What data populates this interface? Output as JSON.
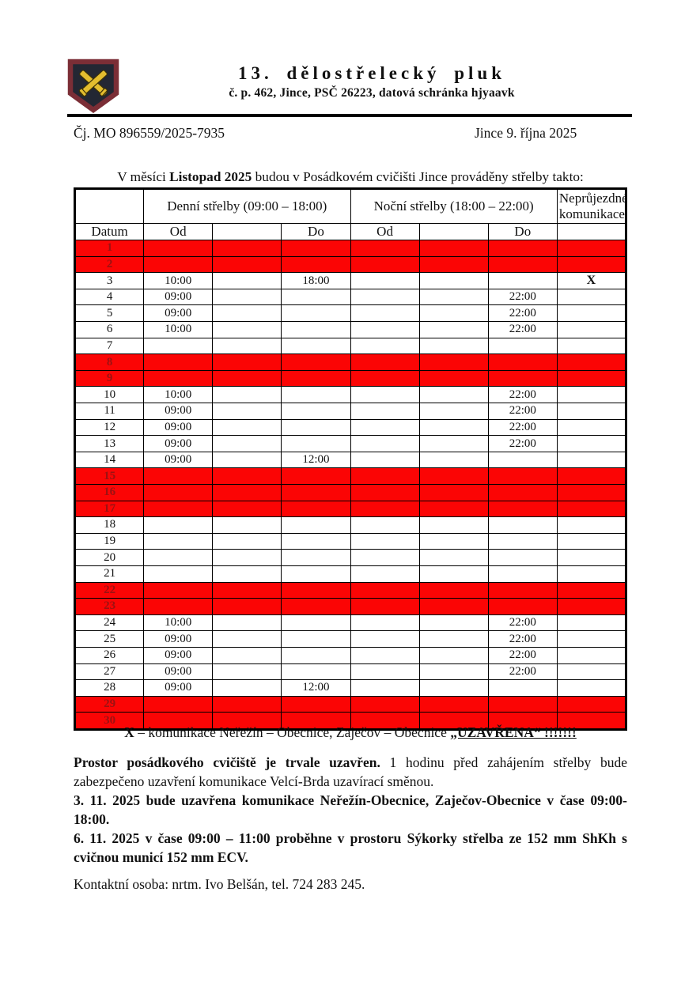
{
  "header": {
    "title": "13. dělostřelecký pluk",
    "address": "č. p. 462, Jince, PSČ 26223, datová  schránka hjyaavk"
  },
  "meta": {
    "ref": "Čj. MO 896559/2025-7935",
    "place_date": "Jince 9. října 2025"
  },
  "intro": {
    "prefix": "V měsíci",
    "month": "Listopad 2025",
    "suffix": "budou v Posádkovém cvičišti Jince prováděny střelby takto:"
  },
  "table": {
    "day_header": "Denní střelby (09:00 – 18:00)",
    "night_header": "Noční střelby (18:00 – 22:00)",
    "impassable_header": "Neprůjezdné komunikace",
    "datum_label": "Datum",
    "od_label": "Od",
    "do_label": "Do",
    "rows": [
      {
        "d": "1",
        "red": true,
        "c": [
          "",
          "",
          "",
          "",
          "",
          "",
          ""
        ]
      },
      {
        "d": "2",
        "red": true,
        "c": [
          "",
          "",
          "",
          "",
          "",
          "",
          ""
        ]
      },
      {
        "d": "3",
        "red": false,
        "c": [
          "10:00",
          "",
          "18:00",
          "",
          "",
          "",
          "X"
        ]
      },
      {
        "d": "4",
        "red": false,
        "c": [
          "09:00",
          "",
          "",
          "",
          "",
          "22:00",
          ""
        ]
      },
      {
        "d": "5",
        "red": false,
        "c": [
          "09:00",
          "",
          "",
          "",
          "",
          "22:00",
          ""
        ]
      },
      {
        "d": "6",
        "red": false,
        "c": [
          "10:00",
          "",
          "",
          "",
          "",
          "22:00",
          ""
        ]
      },
      {
        "d": "7",
        "red": false,
        "c": [
          "",
          "",
          "",
          "",
          "",
          "",
          ""
        ]
      },
      {
        "d": "8",
        "red": true,
        "c": [
          "",
          "",
          "",
          "",
          "",
          "",
          ""
        ]
      },
      {
        "d": "9",
        "red": true,
        "c": [
          "",
          "",
          "",
          "",
          "",
          "",
          ""
        ]
      },
      {
        "d": "10",
        "red": false,
        "c": [
          "10:00",
          "",
          "",
          "",
          "",
          "22:00",
          ""
        ]
      },
      {
        "d": "11",
        "red": false,
        "c": [
          "09:00",
          "",
          "",
          "",
          "",
          "22:00",
          ""
        ]
      },
      {
        "d": "12",
        "red": false,
        "c": [
          "09:00",
          "",
          "",
          "",
          "",
          "22:00",
          ""
        ]
      },
      {
        "d": "13",
        "red": false,
        "c": [
          "09:00",
          "",
          "",
          "",
          "",
          "22:00",
          ""
        ]
      },
      {
        "d": "14",
        "red": false,
        "c": [
          "09:00",
          "",
          "12:00",
          "",
          "",
          "",
          ""
        ]
      },
      {
        "d": "15",
        "red": true,
        "c": [
          "",
          "",
          "",
          "",
          "",
          "",
          ""
        ]
      },
      {
        "d": "16",
        "red": true,
        "c": [
          "",
          "",
          "",
          "",
          "",
          "",
          ""
        ]
      },
      {
        "d": "17",
        "red": true,
        "c": [
          "",
          "",
          "",
          "",
          "",
          "",
          ""
        ]
      },
      {
        "d": "18",
        "red": false,
        "c": [
          "",
          "",
          "",
          "",
          "",
          "",
          ""
        ]
      },
      {
        "d": "19",
        "red": false,
        "c": [
          "",
          "",
          "",
          "",
          "",
          "",
          ""
        ]
      },
      {
        "d": "20",
        "red": false,
        "c": [
          "",
          "",
          "",
          "",
          "",
          "",
          ""
        ]
      },
      {
        "d": "21",
        "red": false,
        "c": [
          "",
          "",
          "",
          "",
          "",
          "",
          ""
        ]
      },
      {
        "d": "22",
        "red": true,
        "c": [
          "",
          "",
          "",
          "",
          "",
          "",
          ""
        ]
      },
      {
        "d": "23",
        "red": true,
        "c": [
          "",
          "",
          "",
          "",
          "",
          "",
          ""
        ]
      },
      {
        "d": "24",
        "red": false,
        "c": [
          "10:00",
          "",
          "",
          "",
          "",
          "22:00",
          ""
        ]
      },
      {
        "d": "25",
        "red": false,
        "c": [
          "09:00",
          "",
          "",
          "",
          "",
          "22:00",
          ""
        ]
      },
      {
        "d": "26",
        "red": false,
        "c": [
          "09:00",
          "",
          "",
          "",
          "",
          "22:00",
          ""
        ]
      },
      {
        "d": "27",
        "red": false,
        "c": [
          "09:00",
          "",
          "",
          "",
          "",
          "22:00",
          ""
        ]
      },
      {
        "d": "28",
        "red": false,
        "c": [
          "09:00",
          "",
          "12:00",
          "",
          "",
          "",
          ""
        ]
      },
      {
        "d": "29",
        "red": true,
        "c": [
          "",
          "",
          "",
          "",
          "",
          "",
          ""
        ]
      },
      {
        "d": "30",
        "red": true,
        "c": [
          "",
          "",
          "",
          "",
          "",
          "",
          ""
        ]
      }
    ]
  },
  "footnote": {
    "x": "X",
    "body": "– komunikace  Neřežín – Obecnice, Zaječov – Obecnice",
    "closed": "„UZAVŘENA“ !!!!!!!"
  },
  "paragraphs": {
    "p1_bold": "Prostor posádkového cvičiště je trvale uzavřen.",
    "p1_rest": "1 hodinu před zahájením střelby bude zabezpečeno uzavření komunikace Velcí-Brda uzavírací směnou.",
    "p2": "3. 11. 2025 bude uzavřena komunikace Neřežín-Obecnice, Zaječov-Obecnice v čase 09:00-18:00.",
    "p3": "6. 11. 2025 v čase 09:00 – 11:00 proběhne v prostoru Sýkorky střelba ze 152 mm ShKh s cvičnou municí 152 mm ECV."
  },
  "contact": "Kontaktní osoba: nrtm. Ivo Belšán,  tel.  724 283 245.",
  "colors": {
    "closed_day_fill": "#fb0505",
    "closed_day_number": "#9c1212",
    "crest_border": "#7b2e36",
    "crest_field": "#232733",
    "crest_cannons": "#e3bd2f"
  }
}
